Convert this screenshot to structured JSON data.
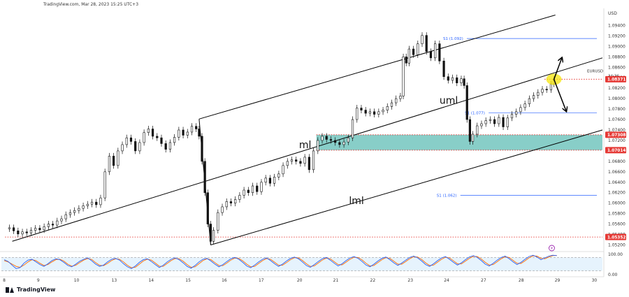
{
  "header": "TradingView.com, Mar 28, 2023 15:25 UTC+3",
  "brand": "TradingView",
  "colors": {
    "channel": "#000000",
    "zone": "#26a69a",
    "fib": "#2962ff",
    "redline": "#e53935",
    "price_badge": "#e53935",
    "rsi": "#2962ff",
    "rsi_signal": "#ff6d00",
    "highlight": "#f5e50b"
  },
  "chart_data": {
    "type": "line",
    "symbol": "EURUSD",
    "currency": "USD",
    "ylim": [
      1.051,
      1.097
    ],
    "y_ticks": [
      "1.09400",
      "1.09200",
      "1.09000",
      "1.08800",
      "1.08600",
      "1.08400",
      "1.08200",
      "1.08000",
      "1.07800",
      "1.07600",
      "1.07400",
      "1.07200",
      "1.06800",
      "1.06600",
      "1.06400",
      "1.06200",
      "1.06000",
      "1.05800",
      "1.05600",
      "1.05400",
      "1.05200"
    ],
    "x_ticks": [
      {
        "label": "8",
        "t": 0.0
      },
      {
        "label": "9",
        "t": 4.7
      },
      {
        "label": "10",
        "t": 9.8
      },
      {
        "label": "13",
        "t": 15.0
      },
      {
        "label": "14",
        "t": 20.1
      },
      {
        "label": "15",
        "t": 25.2
      },
      {
        "label": "16",
        "t": 30.2
      },
      {
        "label": "17",
        "t": 35.3
      },
      {
        "label": "20",
        "t": 40.6
      },
      {
        "label": "21",
        "t": 45.6
      },
      {
        "label": "22",
        "t": 50.7
      },
      {
        "label": "23",
        "t": 55.9
      },
      {
        "label": "24",
        "t": 60.9
      },
      {
        "label": "27",
        "t": 66.0
      },
      {
        "label": "28",
        "t": 71.2
      },
      {
        "label": "29",
        "t": 76.2
      },
      {
        "label": "30",
        "t": 81.3
      }
    ],
    "x_range": [
      -0.5,
      82.5
    ],
    "series": [
      {
        "name": "EURUSD",
        "points": [
          [
            0.0,
            1.0551
          ],
          [
            0.6,
            1.0553
          ],
          [
            1.2,
            1.0547
          ],
          [
            1.8,
            1.0541
          ],
          [
            2.4,
            1.0545
          ],
          [
            3.0,
            1.0543
          ],
          [
            3.6,
            1.0548
          ],
          [
            4.2,
            1.0552
          ],
          [
            4.8,
            1.0549
          ],
          [
            5.4,
            1.0555
          ],
          [
            6.0,
            1.056
          ],
          [
            6.6,
            1.0558
          ],
          [
            7.2,
            1.0566
          ],
          [
            7.8,
            1.057
          ],
          [
            8.4,
            1.0578
          ],
          [
            9.0,
            1.0582
          ],
          [
            9.6,
            1.0586
          ],
          [
            10.2,
            1.059
          ],
          [
            10.8,
            1.0595
          ],
          [
            11.4,
            1.0598
          ],
          [
            12.0,
            1.0602
          ],
          [
            12.6,
            1.0597
          ],
          [
            13.2,
            1.061
          ],
          [
            13.8,
            1.066
          ],
          [
            14.4,
            1.069
          ],
          [
            15.0,
            1.0672
          ],
          [
            15.6,
            1.07
          ],
          [
            16.2,
            1.0712
          ],
          [
            16.8,
            1.0725
          ],
          [
            17.4,
            1.0718
          ],
          [
            18.0,
            1.07
          ],
          [
            18.6,
            1.0716
          ],
          [
            19.2,
            1.0735
          ],
          [
            19.8,
            1.0742
          ],
          [
            20.4,
            1.0728
          ],
          [
            21.0,
            1.0725
          ],
          [
            21.6,
            1.0714
          ],
          [
            22.2,
            1.0703
          ],
          [
            22.8,
            1.0716
          ],
          [
            23.4,
            1.0726
          ],
          [
            24.0,
            1.074
          ],
          [
            24.6,
            1.073
          ],
          [
            25.2,
            1.0736
          ],
          [
            25.8,
            1.0747
          ],
          [
            26.4,
            1.0742
          ],
          [
            26.8,
            1.0728
          ],
          [
            27.2,
            1.068
          ],
          [
            27.6,
            1.062
          ],
          [
            28.0,
            1.056
          ],
          [
            28.4,
            1.0527
          ],
          [
            28.8,
            1.0548
          ],
          [
            29.4,
            1.0582
          ],
          [
            30.0,
            1.0593
          ],
          [
            30.6,
            1.0603
          ],
          [
            31.2,
            1.06
          ],
          [
            31.8,
            1.0607
          ],
          [
            32.4,
            1.0615
          ],
          [
            33.0,
            1.0625
          ],
          [
            33.6,
            1.062
          ],
          [
            34.2,
            1.0633
          ],
          [
            34.8,
            1.0622
          ],
          [
            35.4,
            1.064
          ],
          [
            36.0,
            1.0648
          ],
          [
            36.6,
            1.0638
          ],
          [
            37.2,
            1.065
          ],
          [
            37.8,
            1.0656
          ],
          [
            38.4,
            1.0672
          ],
          [
            39.0,
            1.068
          ],
          [
            39.6,
            1.0683
          ],
          [
            40.2,
            1.068
          ],
          [
            40.8,
            1.0676
          ],
          [
            41.4,
            1.0688
          ],
          [
            42.0,
            1.0664
          ],
          [
            42.6,
            1.07
          ],
          [
            43.2,
            1.072
          ],
          [
            43.8,
            1.0728
          ],
          [
            44.4,
            1.0722
          ],
          [
            45.0,
            1.072
          ],
          [
            45.6,
            1.0716
          ],
          [
            46.2,
            1.0712
          ],
          [
            46.8,
            1.0717
          ],
          [
            47.4,
            1.0725
          ],
          [
            48.0,
            1.076
          ],
          [
            48.6,
            1.0782
          ],
          [
            49.2,
            1.0778
          ],
          [
            49.8,
            1.0772
          ],
          [
            50.4,
            1.0775
          ],
          [
            51.0,
            1.077
          ],
          [
            51.6,
            1.0775
          ],
          [
            52.2,
            1.0778
          ],
          [
            52.8,
            1.0785
          ],
          [
            53.4,
            1.0792
          ],
          [
            54.0,
            1.08
          ],
          [
            54.6,
            1.0805
          ],
          [
            55.0,
            1.088
          ],
          [
            55.4,
            1.0868
          ],
          [
            55.8,
            1.0895
          ],
          [
            56.4,
            1.0884
          ],
          [
            57.0,
            1.0905
          ],
          [
            57.6,
            1.0921
          ],
          [
            58.2,
            1.089
          ],
          [
            58.8,
            1.0878
          ],
          [
            59.4,
            1.0905
          ],
          [
            60.0,
            1.0872
          ],
          [
            60.6,
            1.0842
          ],
          [
            61.2,
            1.0835
          ],
          [
            61.8,
            1.084
          ],
          [
            62.4,
            1.083
          ],
          [
            63.0,
            1.0838
          ],
          [
            63.4,
            1.0825
          ],
          [
            63.8,
            1.076
          ],
          [
            64.2,
            1.0718
          ],
          [
            64.6,
            1.0732
          ],
          [
            65.2,
            1.0748
          ],
          [
            65.8,
            1.0752
          ],
          [
            66.4,
            1.0758
          ],
          [
            67.0,
            1.076
          ],
          [
            67.6,
            1.0752
          ],
          [
            68.2,
            1.0764
          ],
          [
            68.8,
            1.0746
          ],
          [
            69.4,
            1.0763
          ],
          [
            70.0,
            1.077
          ],
          [
            70.6,
            1.0775
          ],
          [
            71.2,
            1.0783
          ],
          [
            71.8,
            1.079
          ],
          [
            72.4,
            1.08
          ],
          [
            73.0,
            1.0806
          ],
          [
            73.6,
            1.0812
          ],
          [
            74.2,
            1.0818
          ],
          [
            74.8,
            1.0817
          ],
          [
            75.4,
            1.0828
          ],
          [
            75.8,
            1.0837
          ]
        ]
      }
    ],
    "channel_lines": [
      {
        "label": "uml",
        "x1": 26.8,
        "y1": 1.0761,
        "x2": 76.0,
        "y2": 1.096
      },
      {
        "label": "ml",
        "x1": 1.0,
        "y1": 1.0527,
        "x2": 82.5,
        "y2": 1.0878
      },
      {
        "label": "lml",
        "x1": 28.4,
        "y1": 1.052,
        "x2": 82.5,
        "y2": 1.074
      },
      {
        "label": "",
        "x1": 26.8,
        "y1": 1.0761,
        "x2": 28.4,
        "y2": 1.052
      }
    ],
    "zone": {
      "top": 1.07308,
      "bottom": 1.07014,
      "x_start": 43.0
    },
    "red_levels": [
      {
        "value": 1.08371,
        "x_start": 74.5
      },
      {
        "value": 1.07308,
        "x_start": 43.0
      },
      {
        "value": 1.07014,
        "x_start": 43.0
      },
      {
        "value": 1.05352,
        "x_start": 0.0
      }
    ],
    "price_badges": [
      "1.08371",
      "1.07308",
      "1.07014",
      "1.05352"
    ],
    "symbol_tag": {
      "symbol": "EURUSD",
      "countdown": "34:36"
    },
    "fib_levels": [
      {
        "label": "S1 (1.092)",
        "value": 1.0915,
        "x_start": 60.5
      },
      {
        "label": "S1 (1.077)",
        "value": 1.0773,
        "x_start": 63.5
      },
      {
        "label": "S1 (1.062)",
        "value": 1.0615,
        "x_start": 59.6
      }
    ],
    "arrows": [
      {
        "from": [
          75.8,
          1.0837
        ],
        "to": [
          76.9,
          1.0878
        ],
        "direction": "up"
      },
      {
        "from": [
          75.8,
          1.0837
        ],
        "to": [
          77.5,
          1.0776
        ],
        "direction": "down"
      }
    ],
    "rsi_panel": {
      "ticks": [
        "100.00",
        "0.00"
      ],
      "levels": [
        80,
        20
      ],
      "k_values": [
        70,
        62,
        45,
        30,
        35,
        55,
        68,
        72,
        60,
        48,
        40,
        52,
        66,
        74,
        70,
        58,
        44,
        38,
        50,
        63,
        72,
        78,
        65,
        50,
        40,
        46,
        60,
        72,
        76,
        68,
        52,
        38,
        30,
        42,
        58,
        70,
        74,
        62,
        48,
        35,
        45,
        60,
        72,
        78,
        70,
        56,
        40,
        32,
        44,
        60,
        72,
        76,
        64,
        50,
        38,
        48,
        62,
        74,
        80,
        72,
        58,
        42,
        34,
        46,
        60,
        72,
        78,
        66,
        52,
        40,
        50,
        64,
        76,
        82,
        74,
        60,
        44,
        36,
        48,
        62,
        74,
        80,
        68,
        54,
        42,
        52,
        66,
        78,
        84,
        76,
        62,
        46,
        38,
        50,
        64,
        76,
        82,
        70,
        56,
        44,
        55,
        68,
        80,
        86,
        78,
        64,
        48,
        40,
        52,
        66,
        78,
        84,
        72,
        58,
        46,
        56,
        70,
        82,
        88,
        80,
        66,
        50,
        42,
        54,
        68,
        80,
        86,
        74,
        60,
        48,
        58,
        72,
        84,
        90,
        82,
        70,
        78,
        86,
        90,
        88
      ],
      "d_values": [
        66,
        60,
        50,
        40,
        36,
        46,
        60,
        70,
        66,
        54,
        44,
        48,
        60,
        70,
        72,
        64,
        50,
        41,
        45,
        57,
        68,
        75,
        71,
        57,
        45,
        43,
        53,
        66,
        74,
        72,
        60,
        45,
        34,
        36,
        50,
        64,
        72,
        68,
        55,
        41,
        40,
        53,
        66,
        75,
        74,
        63,
        48,
        36,
        38,
        52,
        66,
        74,
        70,
        57,
        44,
        43,
        55,
        68,
        77,
        76,
        65,
        50,
        38,
        40,
        53,
        66,
        75,
        72,
        59,
        46,
        45,
        57,
        70,
        79,
        78,
        67,
        52,
        40,
        42,
        55,
        68,
        77,
        74,
        61,
        48,
        47,
        59,
        72,
        81,
        80,
        69,
        54,
        42,
        44,
        57,
        70,
        79,
        76,
        63,
        50,
        50,
        62,
        74,
        83,
        82,
        71,
        56,
        44,
        46,
        59,
        72,
        81,
        78,
        65,
        52,
        51,
        63,
        76,
        85,
        84,
        73,
        58,
        46,
        48,
        61,
        74,
        83,
        80,
        67,
        54,
        53,
        65,
        78,
        87,
        86,
        76,
        74,
        82,
        88,
        89
      ]
    },
    "panel_icon": "lightning-icon"
  }
}
